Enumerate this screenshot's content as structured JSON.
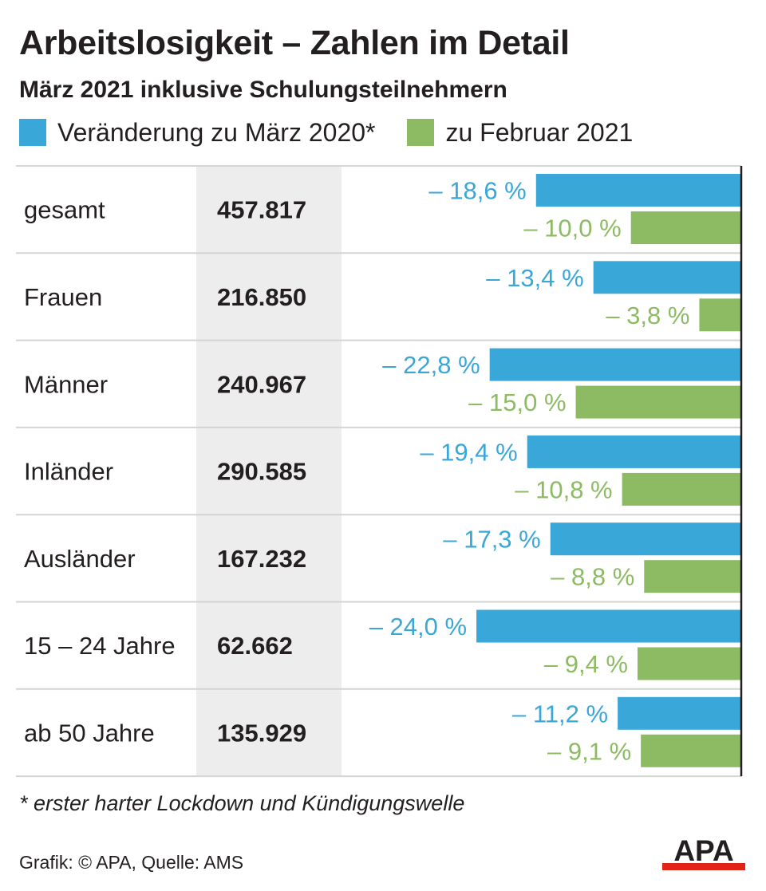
{
  "title": "Arbeitslosigkeit – Zahlen im Detail",
  "subtitle": "März 2021 inklusive Schulungsteilnehmern",
  "colors": {
    "blue": "#3aa7d9",
    "green": "#8cbb63",
    "shade": "#ededed",
    "grid": "#d4d4d4",
    "text": "#231f20",
    "logo_red": "#e2231a"
  },
  "legend": [
    {
      "label": "Veränderung zu März 2020*",
      "color": "#3aa7d9"
    },
    {
      "label": "zu Februar 2021",
      "color": "#8cbb63"
    }
  ],
  "chart_data": {
    "type": "bar",
    "orientation": "horizontal",
    "categories": [
      "gesamt",
      "Frauen",
      "Männer",
      "Inländer",
      "Ausländer",
      "15 – 24 Jahre",
      "ab 50 Jahre"
    ],
    "totals": [
      "457.817",
      "216.850",
      "240.967",
      "290.585",
      "167.232",
      "62.662",
      "135.929"
    ],
    "series": [
      {
        "name": "Veränderung zu März 2020*",
        "values": [
          -18.6,
          -13.4,
          -22.8,
          -19.4,
          -17.3,
          -24.0,
          -11.2
        ],
        "labels": [
          "– 18,6 %",
          "– 13,4 %",
          "– 22,8 %",
          "– 19,4 %",
          "– 17,3 %",
          "– 24,0 %",
          "– 11,2 %"
        ]
      },
      {
        "name": "zu Februar 2021",
        "values": [
          -10.0,
          -3.8,
          -15.0,
          -10.8,
          -8.8,
          -9.4,
          -9.1
        ],
        "labels": [
          "– 10,0 %",
          "– 3,8 %",
          "– 15,0 %",
          "– 10,8 %",
          "– 8,8 %",
          "– 9,4 %",
          "– 9,1 %"
        ]
      }
    ],
    "unit": "%",
    "xlim": [
      -25,
      0
    ]
  },
  "footnote": "* erster harter Lockdown und Kündigungswelle",
  "credit": "Grafik: © APA, Quelle: AMS",
  "logo_text": "APA"
}
